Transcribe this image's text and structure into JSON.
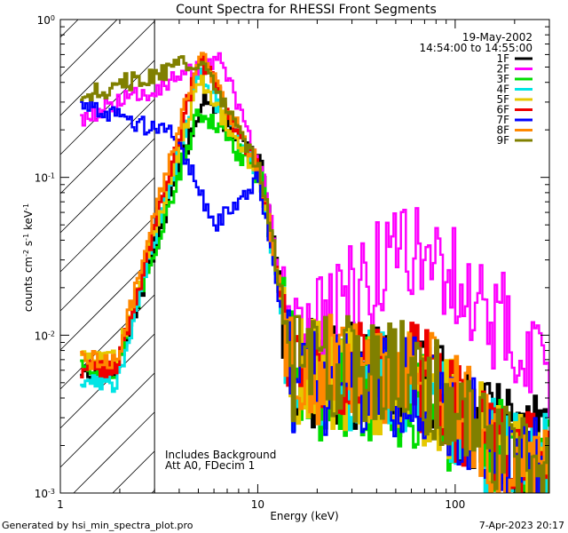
{
  "chart_data": {
    "type": "line",
    "title": "Count Spectra for RHESSI Front Segments",
    "xlabel": "Energy (keV)",
    "ylabel": {
      "base": "counts cm",
      "sup1": "-2",
      "mid1": " s",
      "sup2": "-1",
      "mid2": " keV",
      "sup3": "-1"
    },
    "xscale": "log",
    "yscale": "log",
    "xlim": [
      1,
      300
    ],
    "ylim": [
      0.001,
      1
    ],
    "x_ticks": [
      {
        "v": 1,
        "label": "1"
      },
      {
        "v": 10,
        "label": "10"
      },
      {
        "v": 100,
        "label": "100"
      }
    ],
    "y_ticks": [
      {
        "v": 1,
        "base": "10",
        "exp": "0"
      },
      {
        "v": 0.1,
        "base": "10",
        "exp": "-1"
      },
      {
        "v": 0.01,
        "base": "10",
        "exp": "-2"
      },
      {
        "v": 0.001,
        "base": "10",
        "exp": "-3"
      }
    ],
    "hatched_region": [
      1,
      3
    ],
    "annotation": {
      "date": "19-May-2002",
      "time_range": "14:54:00 to 14:55:00"
    },
    "notes": [
      "Includes Background",
      "Att A0, FDecim 1"
    ],
    "legend_position": "top-right",
    "series": [
      {
        "name": "1F",
        "color": "#000000",
        "peaks": [
          {
            "x": 1.9,
            "y": 0.006
          },
          {
            "x": 5.2,
            "y": 0.33
          },
          {
            "x": 10.2,
            "y": 0.12
          },
          {
            "x": 15,
            "y": 0.006
          },
          {
            "x": 60,
            "y": 0.005
          },
          {
            "x": 200,
            "y": 0.002
          }
        ]
      },
      {
        "name": "2F",
        "color": "#ff00ff",
        "peaks": [
          {
            "x": 1.3,
            "y": 0.24
          },
          {
            "x": 6.5,
            "y": 0.55
          },
          {
            "x": 11,
            "y": 0.08
          },
          {
            "x": 14,
            "y": 0.008
          },
          {
            "x": 60,
            "y": 0.04
          },
          {
            "x": 280,
            "y": 0.0062
          }
        ]
      },
      {
        "name": "3F",
        "color": "#00dd00",
        "peaks": [
          {
            "x": 1.9,
            "y": 0.006
          },
          {
            "x": 5.0,
            "y": 0.27
          },
          {
            "x": 10.2,
            "y": 0.1
          },
          {
            "x": 15,
            "y": 0.005
          },
          {
            "x": 60,
            "y": 0.004
          },
          {
            "x": 200,
            "y": 0.0015
          }
        ]
      },
      {
        "name": "4F",
        "color": "#00e5e5",
        "peaks": [
          {
            "x": 1.9,
            "y": 0.005
          },
          {
            "x": 5.0,
            "y": 0.46
          },
          {
            "x": 10.2,
            "y": 0.1
          },
          {
            "x": 15,
            "y": 0.005
          },
          {
            "x": 60,
            "y": 0.005
          },
          {
            "x": 200,
            "y": 0.0015
          }
        ]
      },
      {
        "name": "5F",
        "color": "#e5c800",
        "peaks": [
          {
            "x": 1.9,
            "y": 0.007
          },
          {
            "x": 5.0,
            "y": 0.42
          },
          {
            "x": 10.2,
            "y": 0.1
          },
          {
            "x": 15,
            "y": 0.006
          },
          {
            "x": 60,
            "y": 0.005
          },
          {
            "x": 200,
            "y": 0.0015
          }
        ]
      },
      {
        "name": "6F",
        "color": "#ee0000",
        "peaks": [
          {
            "x": 1.9,
            "y": 0.006
          },
          {
            "x": 5.0,
            "y": 0.58
          },
          {
            "x": 10.2,
            "y": 0.11
          },
          {
            "x": 15,
            "y": 0.006
          },
          {
            "x": 60,
            "y": 0.006
          },
          {
            "x": 200,
            "y": 0.0015
          }
        ]
      },
      {
        "name": "7F",
        "color": "#0000ff",
        "peaks": [
          {
            "x": 1.3,
            "y": 0.3
          },
          {
            "x": 3.8,
            "y": 0.18
          },
          {
            "x": 6,
            "y": 0.05
          },
          {
            "x": 10,
            "y": 0.1
          },
          {
            "x": 15,
            "y": 0.005
          },
          {
            "x": 60,
            "y": 0.005
          },
          {
            "x": 200,
            "y": 0.0015
          }
        ]
      },
      {
        "name": "8F",
        "color": "#ff8800",
        "peaks": [
          {
            "x": 1.9,
            "y": 0.007
          },
          {
            "x": 5.0,
            "y": 0.62
          },
          {
            "x": 10.2,
            "y": 0.11
          },
          {
            "x": 15,
            "y": 0.006
          },
          {
            "x": 60,
            "y": 0.006
          },
          {
            "x": 200,
            "y": 0.0015
          }
        ]
      },
      {
        "name": "9F",
        "color": "#808000",
        "peaks": [
          {
            "x": 1.3,
            "y": 0.33
          },
          {
            "x": 5.0,
            "y": 0.55
          },
          {
            "x": 10.2,
            "y": 0.11
          },
          {
            "x": 15,
            "y": 0.006
          },
          {
            "x": 60,
            "y": 0.006
          },
          {
            "x": 200,
            "y": 0.0015
          }
        ]
      }
    ]
  },
  "footer": {
    "left": "Generated by hsi_min_spectra_plot.pro",
    "right": "7-Apr-2023 20:17"
  }
}
